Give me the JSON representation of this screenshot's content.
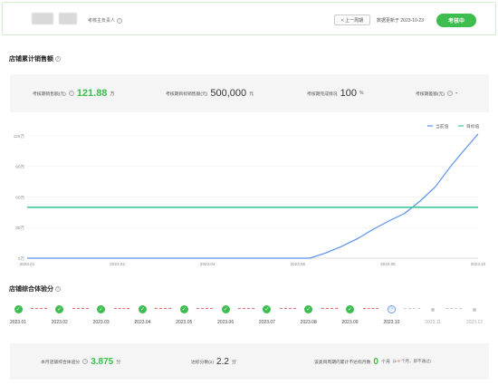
{
  "header": {
    "owner_label": "考核主负责人",
    "prev_label": "< 上一周期",
    "update_text": "数据更新于 2023-10-23",
    "status_label": "考核中"
  },
  "sales_section": {
    "title": "店铺累计销售额",
    "kpis": [
      {
        "label": "考核期销售额(元)",
        "value": "121.88",
        "unit": "万"
      },
      {
        "label": "考核期目标销售额(元)",
        "value": "500,000",
        "unit": "元"
      },
      {
        "label": "考核期完成情况",
        "value": "100",
        "unit": "%"
      },
      {
        "label": "考核期差额(元)",
        "value": "-",
        "unit": ""
      }
    ]
  },
  "chart_data": {
    "type": "line",
    "legend": [
      "当前值",
      "目标值"
    ],
    "legend_position": "top-right",
    "x_ticks": [
      "2023.01",
      "2023.02",
      "2023.04",
      "2023.06",
      "2023.08",
      "2023.10"
    ],
    "y_ticks": [
      "0万",
      "30万",
      "60万",
      "90万",
      "120万"
    ],
    "ylim": [
      0,
      1200000
    ],
    "xlim": [
      "2023-01-01",
      "2023-10-23"
    ],
    "grid": true,
    "series": [
      {
        "name": "当前值",
        "color": "#5b8ff0",
        "points": [
          [
            "2023-01-01",
            0
          ],
          [
            "2023-03-01",
            0
          ],
          [
            "2023-05-01",
            0
          ],
          [
            "2023-07-05",
            0
          ],
          [
            "2023-07-15",
            50000
          ],
          [
            "2023-07-25",
            110000
          ],
          [
            "2023-08-05",
            190000
          ],
          [
            "2023-08-15",
            280000
          ],
          [
            "2023-08-25",
            360000
          ],
          [
            "2023-09-05",
            440000
          ],
          [
            "2023-09-15",
            560000
          ],
          [
            "2023-09-25",
            700000
          ],
          [
            "2023-10-05",
            900000
          ],
          [
            "2023-10-15",
            1080000
          ],
          [
            "2023-10-23",
            1218800
          ]
        ]
      },
      {
        "name": "目标值",
        "color": "#3ec99a",
        "points": [
          [
            "2023-01-01",
            500000
          ],
          [
            "2023-10-23",
            500000
          ]
        ]
      }
    ]
  },
  "score_section": {
    "title": "店铺综合体验分",
    "months": [
      {
        "label": "2023.01",
        "state": "done"
      },
      {
        "label": "2023.02",
        "state": "done"
      },
      {
        "label": "2023.03",
        "state": "done"
      },
      {
        "label": "2023.04",
        "state": "done"
      },
      {
        "label": "2023.05",
        "state": "done"
      },
      {
        "label": "2023.06",
        "state": "done"
      },
      {
        "label": "2023.07",
        "state": "done"
      },
      {
        "label": "2023.08",
        "state": "done"
      },
      {
        "label": "2023.09",
        "state": "done"
      },
      {
        "label": "2023.10",
        "state": "current"
      },
      {
        "label": "2023.11",
        "state": "future"
      },
      {
        "label": "2023.12",
        "state": "future"
      }
    ],
    "current_score_label": "本月店铺综合体验分",
    "current_score_value": "3.875",
    "current_score_unit": "分",
    "target_label": "达标分数(≥)",
    "target_value": "2.2",
    "target_unit": "分",
    "fail_label": "该类目周期内累计不达标月数",
    "fail_value": "0",
    "fail_unit": "个月",
    "fail_note_prefix": "(≥",
    "fail_note_count": "6",
    "fail_note_suffix": "个月，即不通过)"
  }
}
